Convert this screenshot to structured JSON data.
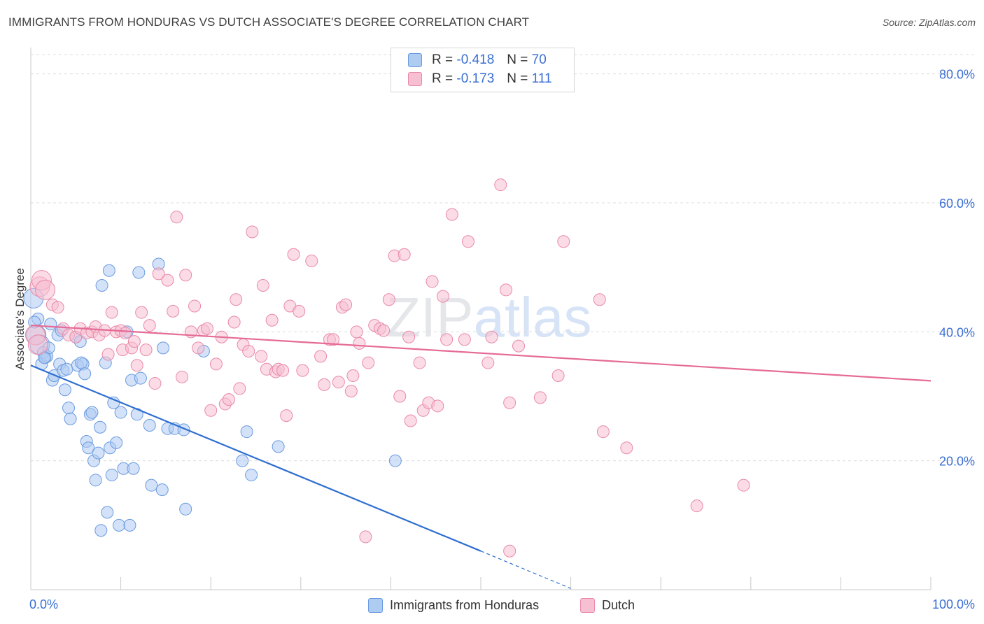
{
  "header": {
    "title": "IMMIGRANTS FROM HONDURAS VS DUTCH ASSOCIATE'S DEGREE CORRELATION CHART",
    "source": "Source: ZipAtlas.com"
  },
  "watermark": {
    "zip": "ZIP",
    "atlas": "atlas"
  },
  "legend": {
    "rows": [
      {
        "r_label": "R =",
        "r_value": "-0.418",
        "n_label": "N =",
        "n_value": "70"
      },
      {
        "r_label": "R =",
        "r_value": "-0.173",
        "n_label": "N =",
        "n_value": "111"
      }
    ]
  },
  "bottom_legend": [
    {
      "label": "Immigrants from Honduras"
    },
    {
      "label": "Dutch"
    }
  ],
  "colors": {
    "blue_fill": "#aecbf2",
    "blue_stroke": "#6a9be0",
    "blue_line": "#2f6fd0",
    "pink_fill": "#f7c0d2",
    "pink_stroke": "#e98aa8",
    "pink_line": "#e56b96",
    "axis_label": "#3b6fd4"
  },
  "chart_data": {
    "type": "scatter",
    "title": "IMMIGRANTS FROM HONDURAS VS DUTCH ASSOCIATE'S DEGREE CORRELATION CHART",
    "xlabel": "",
    "ylabel": "Associate's Degree",
    "xlim": [
      0,
      100
    ],
    "ylim": [
      0,
      83
    ],
    "x_tick_labels": [
      "0.0%",
      "100.0%"
    ],
    "y_ticks": [
      20,
      40,
      60,
      80
    ],
    "y_tick_labels": [
      "20.0%",
      "40.0%",
      "60.0%",
      "80.0%"
    ],
    "grid": true,
    "series": [
      {
        "name": "Immigrants from Honduras",
        "color": "blue",
        "trend": {
          "x0": 0,
          "y0": 34.8,
          "x1": 50,
          "y1": 6.0,
          "dash_to_x": 60,
          "dash_to_y": 0.2
        },
        "points": [
          [
            0.3,
            45.2
          ],
          [
            0.6,
            39.5
          ],
          [
            0.8,
            42
          ],
          [
            1.0,
            38
          ],
          [
            1.2,
            35
          ],
          [
            1.4,
            36.8
          ],
          [
            1.6,
            36
          ],
          [
            1.8,
            36.2
          ],
          [
            2.0,
            37.5
          ],
          [
            2.2,
            41.2
          ],
          [
            2.4,
            32.5
          ],
          [
            2.6,
            33.2
          ],
          [
            3.0,
            39.5
          ],
          [
            3.2,
            35
          ],
          [
            3.4,
            40.2
          ],
          [
            3.6,
            34
          ],
          [
            3.8,
            31
          ],
          [
            4.0,
            34.2
          ],
          [
            4.2,
            28.2
          ],
          [
            4.4,
            26.5
          ],
          [
            5.0,
            39.2
          ],
          [
            5.2,
            34.8
          ],
          [
            5.5,
            38.5
          ],
          [
            5.8,
            35
          ],
          [
            5.6,
            35.2
          ],
          [
            6.0,
            33.5
          ],
          [
            6.2,
            23
          ],
          [
            6.4,
            22
          ],
          [
            6.6,
            27.2
          ],
          [
            6.8,
            27.5
          ],
          [
            7.0,
            20
          ],
          [
            7.2,
            17
          ],
          [
            7.5,
            21.2
          ],
          [
            7.7,
            25.2
          ],
          [
            7.8,
            9.2
          ],
          [
            7.9,
            47.2
          ],
          [
            8.3,
            35.2
          ],
          [
            8.5,
            12
          ],
          [
            8.7,
            49.5
          ],
          [
            8.8,
            22
          ],
          [
            9.0,
            17.8
          ],
          [
            9.2,
            29
          ],
          [
            9.5,
            22.8
          ],
          [
            9.8,
            10
          ],
          [
            10.0,
            27.5
          ],
          [
            10.3,
            18.8
          ],
          [
            10.7,
            40
          ],
          [
            11.0,
            10
          ],
          [
            11.2,
            32.5
          ],
          [
            11.4,
            18.8
          ],
          [
            11.8,
            27.2
          ],
          [
            12.0,
            49.2
          ],
          [
            12.2,
            32.8
          ],
          [
            13.2,
            25.5
          ],
          [
            13.4,
            16.2
          ],
          [
            14.2,
            50.5
          ],
          [
            14.6,
            15.5
          ],
          [
            14.7,
            37.5
          ],
          [
            15.2,
            25
          ],
          [
            16.0,
            25
          ],
          [
            17.0,
            24.8
          ],
          [
            17.2,
            12.5
          ],
          [
            19.2,
            37
          ],
          [
            23.5,
            20
          ],
          [
            24.0,
            24.5
          ],
          [
            24.5,
            17.8
          ],
          [
            27.5,
            22.2
          ],
          [
            40.5,
            20
          ],
          [
            0.4,
            41.5
          ],
          [
            1.5,
            36
          ]
        ]
      },
      {
        "name": "Dutch",
        "color": "pink",
        "trend": {
          "x0": 0,
          "y0": 41.0,
          "x1": 100,
          "y1": 32.4
        },
        "points": [
          [
            0.5,
            39.5
          ],
          [
            0.8,
            38
          ],
          [
            1.0,
            47
          ],
          [
            1.2,
            48
          ],
          [
            1.6,
            46.5
          ],
          [
            2.4,
            44.2
          ],
          [
            3.0,
            43.8
          ],
          [
            3.6,
            40.5
          ],
          [
            4.2,
            39.5
          ],
          [
            5.0,
            39.2
          ],
          [
            5.5,
            40.5
          ],
          [
            6.2,
            39.8
          ],
          [
            6.8,
            40
          ],
          [
            7.2,
            40.8
          ],
          [
            7.6,
            39.5
          ],
          [
            8.2,
            40.2
          ],
          [
            8.6,
            36.5
          ],
          [
            9.0,
            43
          ],
          [
            9.5,
            40
          ],
          [
            10.0,
            40.2
          ],
          [
            10.2,
            37.2
          ],
          [
            10.5,
            39.8
          ],
          [
            11.2,
            37.5
          ],
          [
            11.5,
            38.5
          ],
          [
            11.8,
            34.8
          ],
          [
            12.3,
            43
          ],
          [
            12.8,
            37.2
          ],
          [
            13.2,
            41
          ],
          [
            13.8,
            32
          ],
          [
            14.2,
            49
          ],
          [
            15.2,
            48
          ],
          [
            15.8,
            43.2
          ],
          [
            16.2,
            57.8
          ],
          [
            16.8,
            33
          ],
          [
            17.2,
            48.8
          ],
          [
            17.8,
            40
          ],
          [
            18.2,
            44
          ],
          [
            18.6,
            37.5
          ],
          [
            19.2,
            40.2
          ],
          [
            19.6,
            40.5
          ],
          [
            20.0,
            27.8
          ],
          [
            20.6,
            35
          ],
          [
            21.2,
            39.2
          ],
          [
            21.6,
            28.8
          ],
          [
            22.0,
            29.5
          ],
          [
            22.6,
            41.5
          ],
          [
            22.8,
            45
          ],
          [
            23.2,
            31.2
          ],
          [
            23.6,
            38
          ],
          [
            24.2,
            37
          ],
          [
            24.6,
            55.5
          ],
          [
            25.6,
            36.2
          ],
          [
            25.8,
            47.2
          ],
          [
            26.2,
            34.2
          ],
          [
            26.8,
            41.8
          ],
          [
            27.2,
            33.8
          ],
          [
            27.5,
            34.2
          ],
          [
            28.0,
            34
          ],
          [
            28.4,
            27
          ],
          [
            28.8,
            44
          ],
          [
            29.2,
            52
          ],
          [
            29.8,
            43.2
          ],
          [
            30.2,
            34
          ],
          [
            31.2,
            51
          ],
          [
            32.2,
            36.2
          ],
          [
            32.6,
            31.8
          ],
          [
            33.2,
            38.8
          ],
          [
            33.6,
            38.8
          ],
          [
            34.2,
            32.2
          ],
          [
            34.6,
            43.8
          ],
          [
            35.0,
            44.2
          ],
          [
            35.6,
            30.8
          ],
          [
            35.8,
            33.2
          ],
          [
            36.2,
            40
          ],
          [
            36.5,
            38.2
          ],
          [
            37.5,
            35.2
          ],
          [
            38.2,
            41
          ],
          [
            38.8,
            40.5
          ],
          [
            39.2,
            40.2
          ],
          [
            39.8,
            45
          ],
          [
            40.4,
            51.8
          ],
          [
            41.0,
            30
          ],
          [
            41.5,
            52
          ],
          [
            42.0,
            39.2
          ],
          [
            42.2,
            26.2
          ],
          [
            43.2,
            35.2
          ],
          [
            43.6,
            27.8
          ],
          [
            44.2,
            29
          ],
          [
            44.6,
            47.8
          ],
          [
            45.2,
            28.5
          ],
          [
            45.8,
            45.5
          ],
          [
            46.2,
            38.8
          ],
          [
            46.8,
            58.2
          ],
          [
            48.2,
            38.8
          ],
          [
            48.6,
            54
          ],
          [
            50.8,
            35.2
          ],
          [
            51.2,
            39.2
          ],
          [
            52.2,
            62.8
          ],
          [
            52.8,
            46.5
          ],
          [
            53.2,
            29
          ],
          [
            54.2,
            37.8
          ],
          [
            56.6,
            29.8
          ],
          [
            58.6,
            33.2
          ],
          [
            59.2,
            54
          ],
          [
            63.2,
            45
          ],
          [
            63.6,
            24.5
          ],
          [
            66.2,
            22
          ],
          [
            79.2,
            16.2
          ],
          [
            74.0,
            13
          ],
          [
            37.2,
            8.2
          ],
          [
            53.2,
            6
          ]
        ]
      }
    ]
  }
}
